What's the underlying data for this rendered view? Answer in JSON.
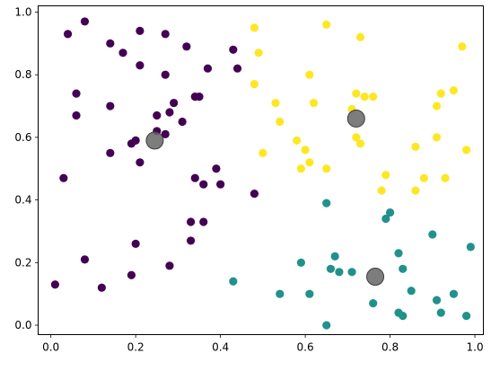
{
  "chart_data": {
    "type": "scatter",
    "title": "",
    "xlabel": "",
    "ylabel": "",
    "xlim": [
      -0.03,
      1.02
    ],
    "ylim": [
      -0.03,
      1.02
    ],
    "grid": false,
    "legend": "none",
    "x_ticks": [
      {
        "value": 0.0,
        "label": "0.0"
      },
      {
        "value": 0.2,
        "label": "0.2"
      },
      {
        "value": 0.4,
        "label": "0.4"
      },
      {
        "value": 0.6,
        "label": "0.6"
      },
      {
        "value": 0.8,
        "label": "0.8"
      },
      {
        "value": 1.0,
        "label": "1.0"
      }
    ],
    "y_ticks": [
      {
        "value": 0.0,
        "label": "0.0"
      },
      {
        "value": 0.2,
        "label": "0.2"
      },
      {
        "value": 0.4,
        "label": "0.4"
      },
      {
        "value": 0.6,
        "label": "0.6"
      },
      {
        "value": 0.8,
        "label": "0.8"
      },
      {
        "value": 1.0,
        "label": "1.0"
      }
    ],
    "series": [
      {
        "color": "#440154",
        "points": [
          [
            0.04,
            0.93
          ],
          [
            0.08,
            0.97
          ],
          [
            0.14,
            0.9
          ],
          [
            0.21,
            0.94
          ],
          [
            0.27,
            0.93
          ],
          [
            0.32,
            0.89
          ],
          [
            0.17,
            0.87
          ],
          [
            0.21,
            0.83
          ],
          [
            0.27,
            0.8
          ],
          [
            0.37,
            0.82
          ],
          [
            0.43,
            0.88
          ],
          [
            0.44,
            0.82
          ],
          [
            0.06,
            0.74
          ],
          [
            0.14,
            0.7
          ],
          [
            0.06,
            0.67
          ],
          [
            0.25,
            0.67
          ],
          [
            0.28,
            0.68
          ],
          [
            0.29,
            0.71
          ],
          [
            0.31,
            0.65
          ],
          [
            0.34,
            0.73
          ],
          [
            0.35,
            0.73
          ],
          [
            0.19,
            0.58
          ],
          [
            0.2,
            0.59
          ],
          [
            0.25,
            0.62
          ],
          [
            0.27,
            0.61
          ],
          [
            0.14,
            0.55
          ],
          [
            0.21,
            0.52
          ],
          [
            0.03,
            0.47
          ],
          [
            0.34,
            0.47
          ],
          [
            0.36,
            0.45
          ],
          [
            0.39,
            0.5
          ],
          [
            0.4,
            0.45
          ],
          [
            0.48,
            0.42
          ],
          [
            0.33,
            0.33
          ],
          [
            0.36,
            0.33
          ],
          [
            0.2,
            0.26
          ],
          [
            0.33,
            0.27
          ],
          [
            0.08,
            0.21
          ],
          [
            0.19,
            0.16
          ],
          [
            0.28,
            0.19
          ],
          [
            0.01,
            0.13
          ],
          [
            0.12,
            0.12
          ]
        ]
      },
      {
        "color": "#21918c",
        "points": [
          [
            0.65,
            0.39
          ],
          [
            0.8,
            0.36
          ],
          [
            0.79,
            0.34
          ],
          [
            0.9,
            0.29
          ],
          [
            0.99,
            0.25
          ],
          [
            0.82,
            0.23
          ],
          [
            0.67,
            0.22
          ],
          [
            0.59,
            0.2
          ],
          [
            0.66,
            0.18
          ],
          [
            0.68,
            0.17
          ],
          [
            0.71,
            0.17
          ],
          [
            0.83,
            0.18
          ],
          [
            0.43,
            0.14
          ],
          [
            0.54,
            0.1
          ],
          [
            0.61,
            0.1
          ],
          [
            0.85,
            0.11
          ],
          [
            0.95,
            0.1
          ],
          [
            0.76,
            0.07
          ],
          [
            0.91,
            0.08
          ],
          [
            0.82,
            0.04
          ],
          [
            0.83,
            0.03
          ],
          [
            0.92,
            0.04
          ],
          [
            0.98,
            0.03
          ],
          [
            0.65,
            0.0
          ]
        ]
      },
      {
        "color": "#fde725",
        "points": [
          [
            0.48,
            0.95
          ],
          [
            0.65,
            0.96
          ],
          [
            0.73,
            0.92
          ],
          [
            0.97,
            0.89
          ],
          [
            0.49,
            0.87
          ],
          [
            0.61,
            0.8
          ],
          [
            0.48,
            0.77
          ],
          [
            0.53,
            0.71
          ],
          [
            0.62,
            0.71
          ],
          [
            0.72,
            0.74
          ],
          [
            0.74,
            0.73
          ],
          [
            0.76,
            0.73
          ],
          [
            0.71,
            0.69
          ],
          [
            0.92,
            0.74
          ],
          [
            0.95,
            0.75
          ],
          [
            0.91,
            0.7
          ],
          [
            0.54,
            0.65
          ],
          [
            0.58,
            0.59
          ],
          [
            0.6,
            0.56
          ],
          [
            0.72,
            0.6
          ],
          [
            0.73,
            0.58
          ],
          [
            0.91,
            0.6
          ],
          [
            0.86,
            0.57
          ],
          [
            0.98,
            0.56
          ],
          [
            0.5,
            0.55
          ],
          [
            0.61,
            0.52
          ],
          [
            0.59,
            0.5
          ],
          [
            0.65,
            0.5
          ],
          [
            0.79,
            0.48
          ],
          [
            0.88,
            0.47
          ],
          [
            0.93,
            0.47
          ],
          [
            0.78,
            0.43
          ],
          [
            0.86,
            0.43
          ]
        ]
      }
    ],
    "centroids": {
      "color": "#666666",
      "points": [
        [
          0.245,
          0.59
        ],
        [
          0.72,
          0.66
        ],
        [
          0.765,
          0.155
        ]
      ]
    }
  }
}
